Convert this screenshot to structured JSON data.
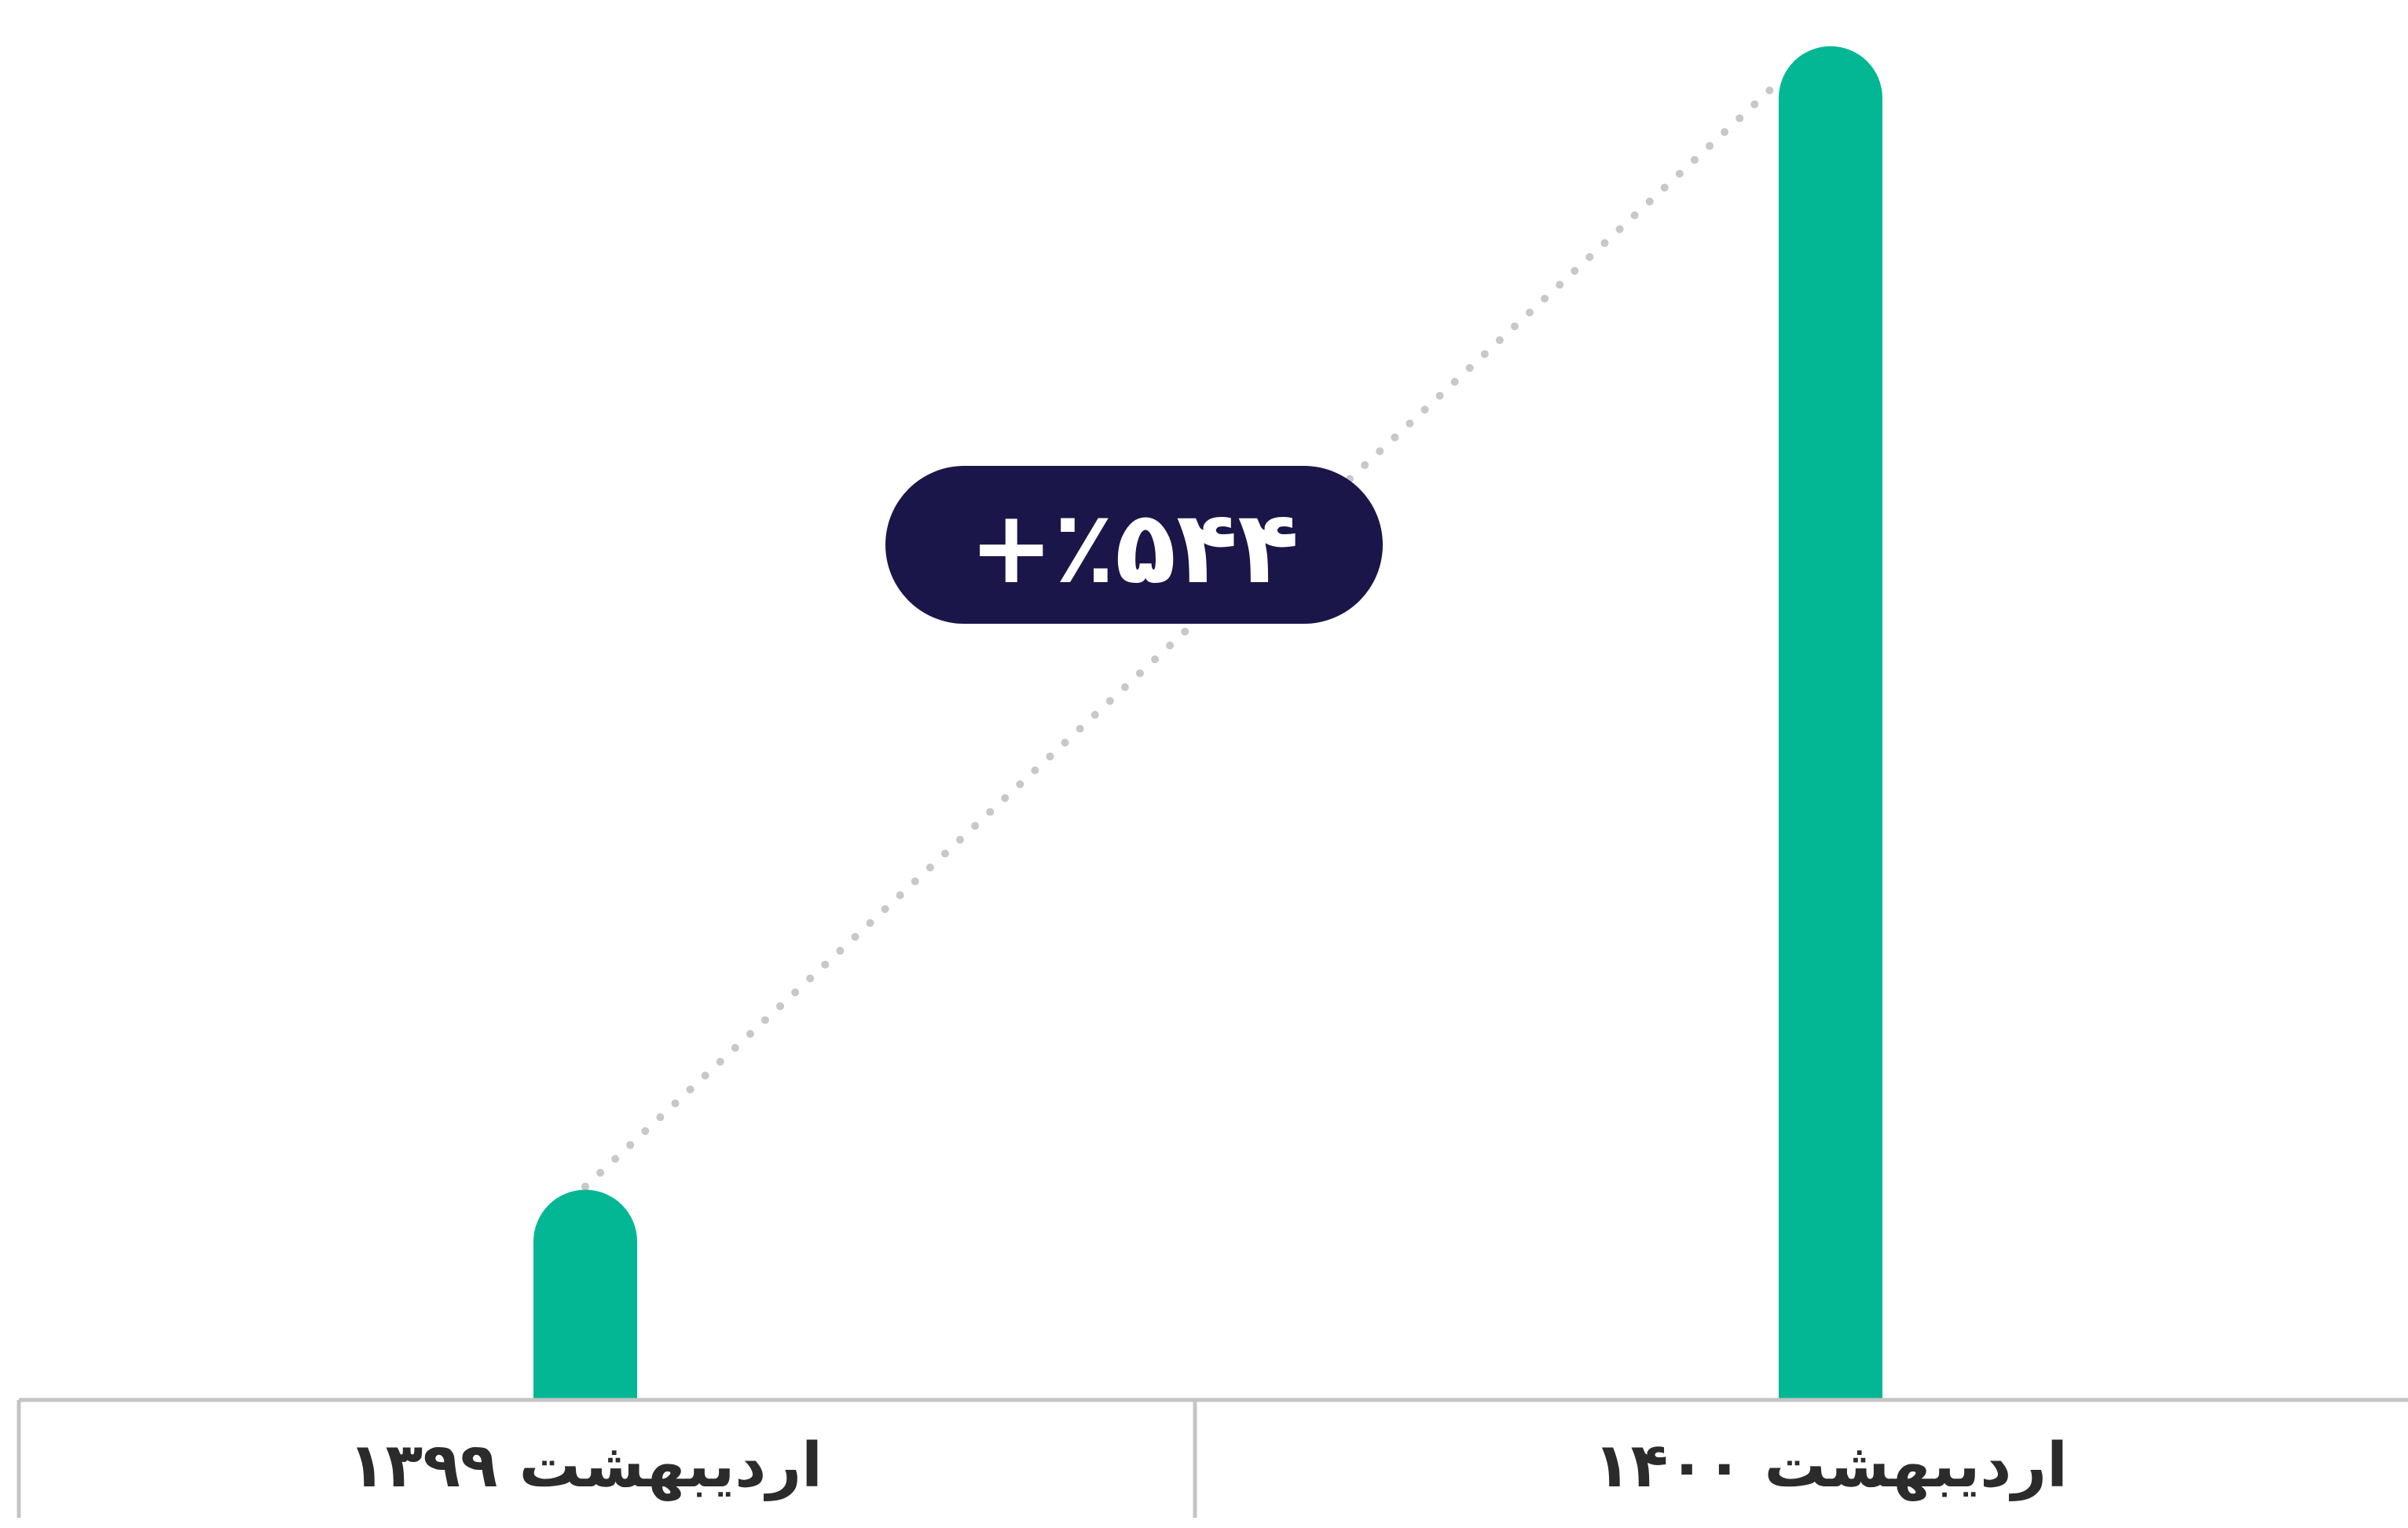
{
  "chart_data": {
    "type": "bar",
    "categories": [
      "اردیبهشت ۱۳۹۹",
      "اردیبهشت ۱۴۰۰"
    ],
    "values": [
      100,
      644
    ],
    "ylim": [
      0,
      660
    ],
    "grid": false,
    "annotation": {
      "label": "+٪۵۴۴"
    }
  },
  "colors": {
    "bar": "#04b794",
    "badge": "#1b1649",
    "axis": "#c4c4c4",
    "dots": "#c8c8c8"
  }
}
